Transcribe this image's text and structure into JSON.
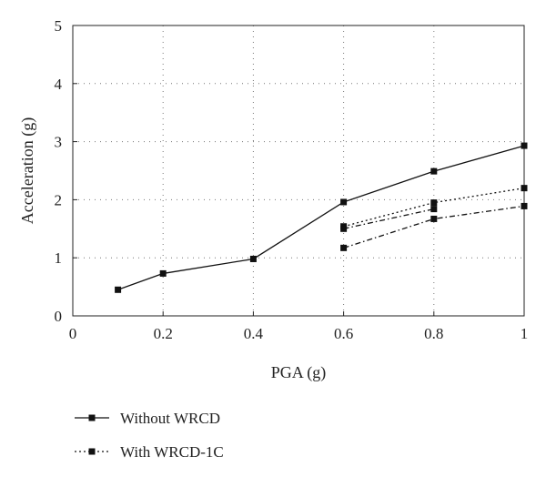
{
  "chart_data": {
    "type": "line",
    "xlabel": "PGA (g)",
    "ylabel": "Acceleration (g)",
    "xlim": [
      0,
      1
    ],
    "ylim": [
      0,
      5
    ],
    "x_ticks": [
      "0",
      "0.2",
      "0.4",
      "0.6",
      "0.8",
      "1"
    ],
    "y_ticks": [
      "0",
      "1",
      "2",
      "3",
      "4",
      "5"
    ],
    "grid": true,
    "legend_position": "bottom-left",
    "series": [
      {
        "name": "Without WRCD",
        "line_style": "solid",
        "x": [
          0.1,
          0.2,
          0.4,
          0.6,
          0.8,
          1.0
        ],
        "y": [
          0.45,
          0.73,
          0.98,
          1.96,
          2.49,
          2.93
        ]
      },
      {
        "name": "With WRCD-1C",
        "line_style": "dotted",
        "x": [
          0.6,
          0.8,
          1.0
        ],
        "y": [
          1.54,
          1.95,
          2.2
        ]
      },
      {
        "line_style": "dash-dot",
        "x": [
          0.6,
          0.8
        ],
        "y": [
          1.5,
          1.84
        ]
      },
      {
        "line_style": "dash-dot",
        "x": [
          0.6,
          0.8,
          1.0
        ],
        "y": [
          1.17,
          1.67,
          1.89
        ]
      }
    ]
  }
}
